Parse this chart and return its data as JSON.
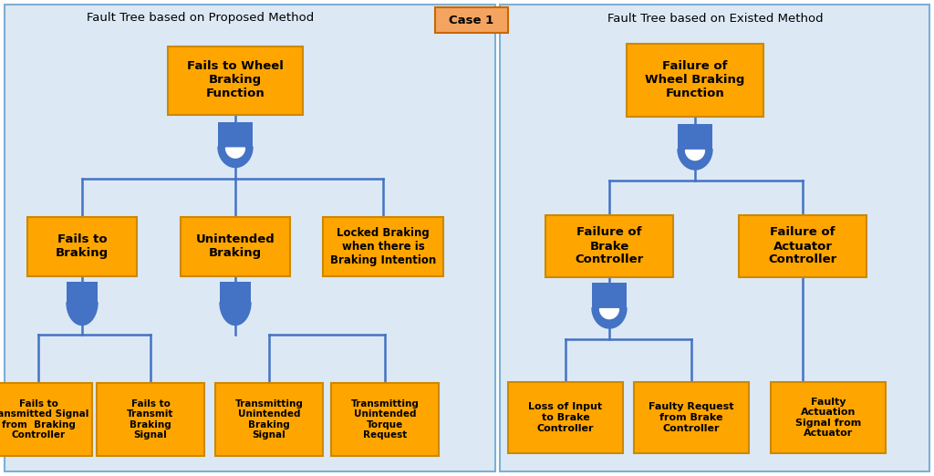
{
  "fig_width": 10.24,
  "fig_height": 5.22,
  "dpi": 100,
  "bg_color": "#ffffff",
  "panel_bg": "#dce9f5",
  "panel_edge": "#7bafd4",
  "box_fill": "#FFA500",
  "box_edge": "#cc8800",
  "gate_color": "#4472C4",
  "line_color": "#4472C4",
  "text_color": "#000000",
  "case_fill": "#F4A460",
  "case_edge": "#cc6600",
  "title_left": "Fault Tree based on Proposed Method",
  "title_right": "Fault Tree based on Existed Method",
  "case_label": "Case 1"
}
